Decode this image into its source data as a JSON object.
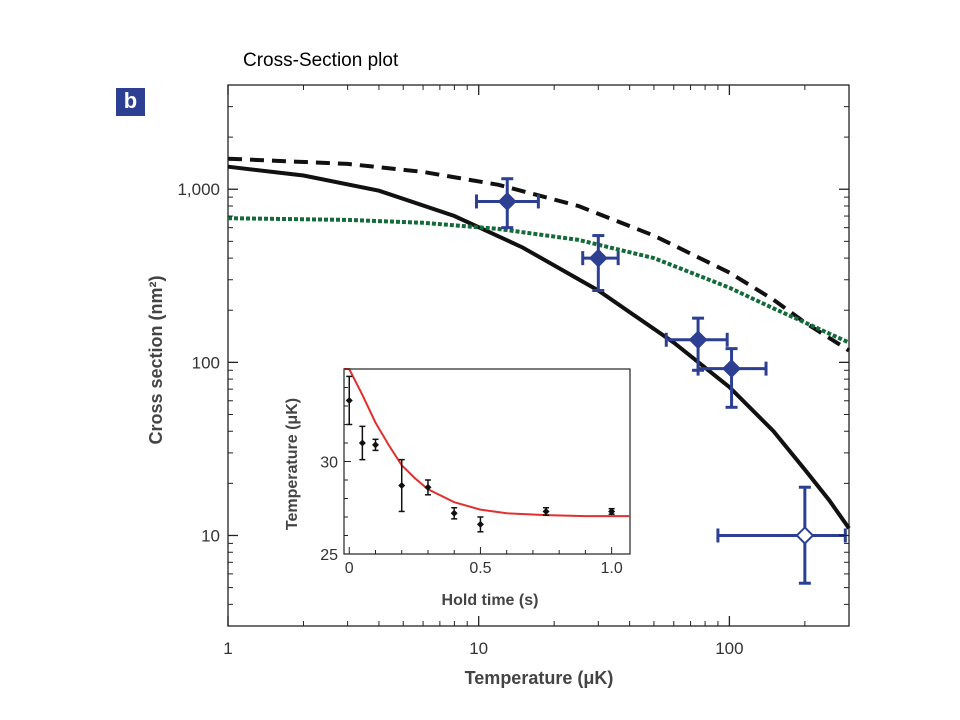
{
  "header": {
    "title": "Cross-Section plot"
  },
  "panel": {
    "label": "b"
  },
  "colors": {
    "data": "#2c3f93",
    "theory_solid": "#111111",
    "theory_dashed": "#111111",
    "theory_dotted": "#136b3a",
    "inset_fit": "#e03030",
    "inset_points": "#111111"
  },
  "chart_data": [
    {
      "type": "scatter",
      "xlabel": "Temperature (μK)",
      "ylabel": "Cross section (nm²)",
      "xscale": "log",
      "yscale": "log",
      "xlim": [
        1,
        300
      ],
      "ylim": [
        3,
        4000
      ],
      "xticks": [
        {
          "value": 1,
          "label": "1"
        },
        {
          "value": 10,
          "label": "10"
        },
        {
          "value": 100,
          "label": "100"
        }
      ],
      "yticks": [
        {
          "value": 10,
          "label": "10"
        },
        {
          "value": 100,
          "label": "100"
        },
        {
          "value": 1000,
          "label": "1,000"
        }
      ],
      "points": [
        {
          "x": 13,
          "y": 850,
          "xlow": 9.8,
          "xhigh": 17.3,
          "ylow": 600,
          "yhigh": 1150,
          "filled": true
        },
        {
          "x": 30,
          "y": 400,
          "xlow": 26,
          "xhigh": 36,
          "ylow": 260,
          "yhigh": 540,
          "filled": true
        },
        {
          "x": 75,
          "y": 135,
          "xlow": 56,
          "xhigh": 98,
          "ylow": 90,
          "yhigh": 180,
          "filled": true
        },
        {
          "x": 102,
          "y": 92,
          "xlow": 75,
          "xhigh": 140,
          "ylow": 55,
          "yhigh": 120,
          "filled": true
        },
        {
          "x": 200,
          "y": 10,
          "xlow": 90,
          "xhigh": 290,
          "ylow": 5.3,
          "yhigh": 19,
          "filled": false
        }
      ],
      "curves": [
        {
          "style": "solid",
          "points": [
            [
              1,
              1350
            ],
            [
              2,
              1200
            ],
            [
              4,
              980
            ],
            [
              8,
              700
            ],
            [
              15,
              460
            ],
            [
              30,
              260
            ],
            [
              60,
              130
            ],
            [
              100,
              72
            ],
            [
              150,
              40
            ],
            [
              200,
              24
            ],
            [
              250,
              16
            ],
            [
              300,
              11
            ]
          ]
        },
        {
          "style": "dashed",
          "points": [
            [
              1,
              1500
            ],
            [
              3,
              1400
            ],
            [
              6,
              1260
            ],
            [
              12,
              1060
            ],
            [
              25,
              800
            ],
            [
              50,
              540
            ],
            [
              100,
              330
            ],
            [
              150,
              230
            ],
            [
              200,
              170
            ],
            [
              300,
              117
            ]
          ]
        },
        {
          "style": "dotted",
          "points": [
            [
              1,
              680
            ],
            [
              3,
              665
            ],
            [
              6,
              640
            ],
            [
              12,
              590
            ],
            [
              25,
              510
            ],
            [
              50,
              400
            ],
            [
              100,
              270
            ],
            [
              150,
              205
            ],
            [
              200,
              170
            ],
            [
              300,
              130
            ]
          ]
        }
      ]
    },
    {
      "type": "scatter",
      "xlabel": "Hold time (s)",
      "ylabel": "Temperature (μK)",
      "xlim": [
        -0.02,
        1.07
      ],
      "ylim": [
        25,
        35
      ],
      "xticks": [
        {
          "value": 0,
          "label": "0"
        },
        {
          "value": 0.5,
          "label": "0.5"
        },
        {
          "value": 1,
          "label": "1.0"
        }
      ],
      "yticks": [
        {
          "value": 25,
          "label": "25"
        },
        {
          "value": 30,
          "label": "30"
        }
      ],
      "points": [
        {
          "x": 0.0,
          "y": 33.3,
          "err": 1.3
        },
        {
          "x": 0.05,
          "y": 31.0,
          "err": 0.9
        },
        {
          "x": 0.1,
          "y": 30.9,
          "err": 0.3
        },
        {
          "x": 0.2,
          "y": 28.7,
          "err": 1.4
        },
        {
          "x": 0.3,
          "y": 28.6,
          "err": 0.4
        },
        {
          "x": 0.4,
          "y": 27.2,
          "err": 0.3
        },
        {
          "x": 0.5,
          "y": 26.6,
          "err": 0.4
        },
        {
          "x": 0.75,
          "y": 27.3,
          "err": 0.2
        },
        {
          "x": 1.0,
          "y": 27.3,
          "err": 0.15
        }
      ],
      "fit": {
        "style": "solid",
        "points": [
          [
            -0.02,
            36.1
          ],
          [
            0,
            35.4
          ],
          [
            0.05,
            33.6
          ],
          [
            0.1,
            32.1
          ],
          [
            0.15,
            30.9
          ],
          [
            0.2,
            29.8
          ],
          [
            0.25,
            29.1
          ],
          [
            0.3,
            28.5
          ],
          [
            0.4,
            27.8
          ],
          [
            0.5,
            27.4
          ],
          [
            0.6,
            27.2
          ],
          [
            0.75,
            27.1
          ],
          [
            0.9,
            27.05
          ],
          [
            1.07,
            27.05
          ]
        ]
      }
    }
  ]
}
